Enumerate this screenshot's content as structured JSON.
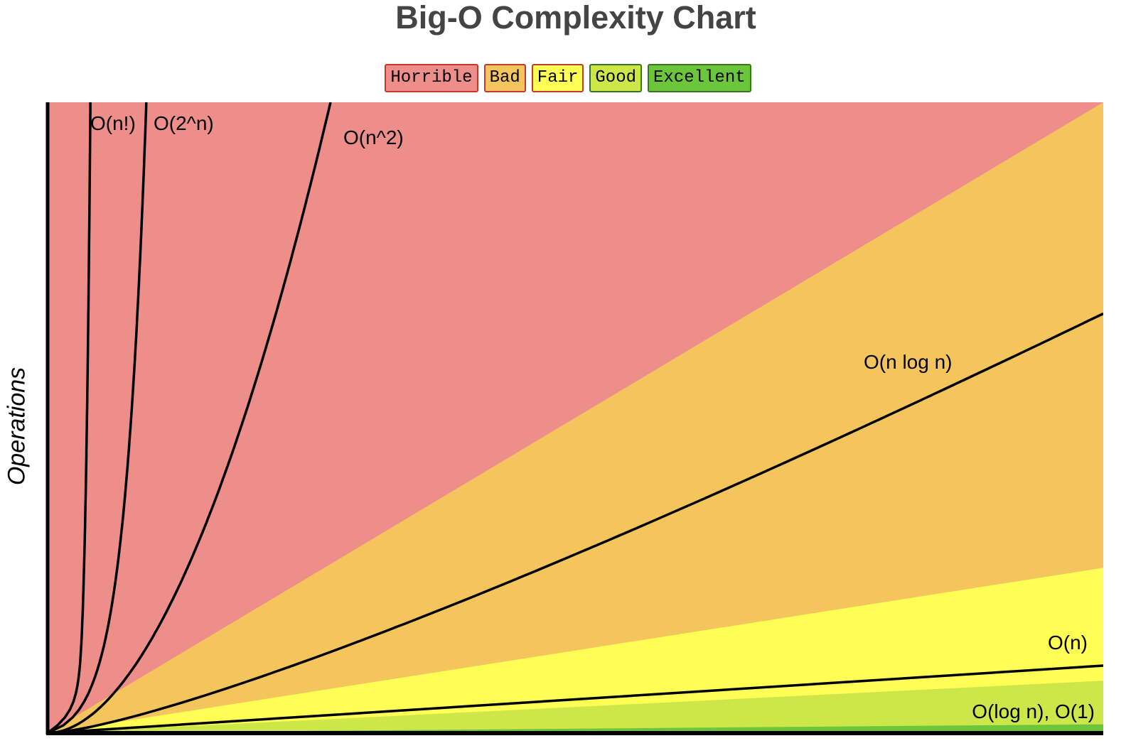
{
  "chart_data": {
    "type": "area",
    "title": "Big-O Complexity Chart",
    "ylabel": "Operations",
    "xlabel": "",
    "legend_position": "top-center",
    "legend": [
      {
        "key": "horrible",
        "label": "Horrible",
        "color": "#ee8e8b",
        "border": "#c0392b"
      },
      {
        "key": "bad",
        "label": "Bad",
        "color": "#f4c55d",
        "border": "#c0392b"
      },
      {
        "key": "fair",
        "label": "Fair",
        "color": "#fefe55",
        "border": "#c0392b"
      },
      {
        "key": "good",
        "label": "Good",
        "color": "#cde74b",
        "border": "#38761d"
      },
      {
        "key": "excellent",
        "label": "Excellent",
        "color": "#6cc63c",
        "border": "#38761d"
      }
    ],
    "xlim": [
      0,
      100
    ],
    "ylim": [
      0,
      1000
    ],
    "regions": [
      {
        "name": "Horrible",
        "color": "#ee8e8b",
        "upper_right": 1000
      },
      {
        "name": "Bad",
        "color": "#f4c55d",
        "upper_right": 1000
      },
      {
        "name": "Fair",
        "color": "#fefe55",
        "upper_right": 262
      },
      {
        "name": "Good",
        "color": "#cde74b",
        "upper_right": 83
      },
      {
        "name": "Excellent",
        "color": "#6cc63c",
        "upper_right": 14
      }
    ],
    "series": [
      {
        "name": "O(n!)",
        "function": "factorial"
      },
      {
        "name": "O(2^n)",
        "function": "exponential"
      },
      {
        "name": "O(n^2)",
        "function": "quadratic"
      },
      {
        "name": "O(n log n)",
        "function": "nlogn"
      },
      {
        "name": "O(n)",
        "function": "linear"
      },
      {
        "name": "O(log n), O(1)",
        "function": "constant"
      }
    ]
  }
}
